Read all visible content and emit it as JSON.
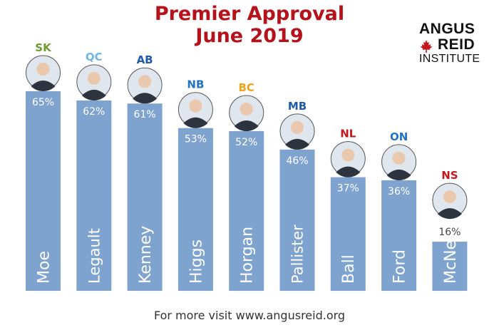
{
  "title": {
    "line1": "Premier Approval",
    "line2": "June 2019"
  },
  "logo": {
    "line1": "ANGUS",
    "line2": "REID",
    "line3": "INSTITUTE"
  },
  "footer": "For more visit www.angusreid.org",
  "colors": {
    "bar": "#7fa3cf",
    "title": "#b5121b"
  },
  "chart_data": {
    "type": "bar",
    "title": "Premier Approval June 2019",
    "categories": [
      "Moe",
      "Legault",
      "Kenney",
      "Higgs",
      "Horgan",
      "Pallister",
      "Ball",
      "Ford",
      "McNeil"
    ],
    "provinces": [
      "SK",
      "QC",
      "AB",
      "NB",
      "BC",
      "MB",
      "NL",
      "ON",
      "NS"
    ],
    "province_colors": [
      "#6e9a2e",
      "#6fb7e6",
      "#1f5ba8",
      "#1f73c4",
      "#f0a21a",
      "#1f5ba8",
      "#c4161c",
      "#1f73c4",
      "#c4161c"
    ],
    "series": [
      {
        "values": [
          65,
          62,
          61,
          53,
          52,
          46,
          37,
          36,
          16
        ]
      }
    ],
    "value_labels": [
      "65%",
      "62%",
      "61%",
      "53%",
      "52%",
      "46%",
      "37%",
      "36%",
      "16%"
    ],
    "ylim": [
      0,
      65
    ],
    "xlabel": "",
    "ylabel": "",
    "grid": false,
    "legend": "none"
  }
}
